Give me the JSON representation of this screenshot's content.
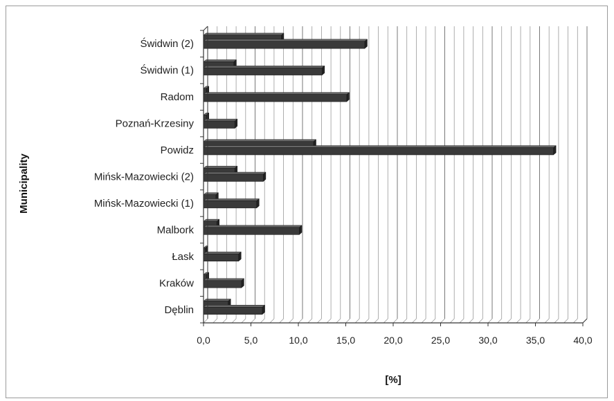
{
  "chart_data": {
    "type": "bar",
    "orientation": "horizontal",
    "categories": [
      "Dęblin",
      "Kraków",
      "Łask",
      "Malbork",
      "Mińsk-Mazowiecki (1)",
      "Mińsk-Mazowiecki (2)",
      "Powidz",
      "Poznań-Krzesiny",
      "Radom",
      "Świdwin (1)",
      "Świdwin (2)"
    ],
    "series": [
      {
        "values": [
          2.6,
          0.3,
          0.2,
          1.4,
          1.3,
          3.3,
          11.6,
          0.3,
          0.3,
          3.2,
          8.2
        ]
      },
      {
        "values": [
          6.2,
          4.0,
          3.7,
          10.1,
          5.6,
          6.3,
          36.9,
          3.3,
          15.1,
          12.5,
          17.0
        ]
      }
    ],
    "xlabel": "[%]",
    "ylabel": "Municipality",
    "xlim": [
      0,
      40
    ],
    "xticks": [
      "0,0",
      "5,0",
      "10,0",
      "15,0",
      "20,0",
      "25,0",
      "30,0",
      "35,0",
      "40,0"
    ],
    "grid": true,
    "colors": {
      "series_fill": "#3a3a3a",
      "series_top": "#666666",
      "grid": "#999999"
    }
  }
}
